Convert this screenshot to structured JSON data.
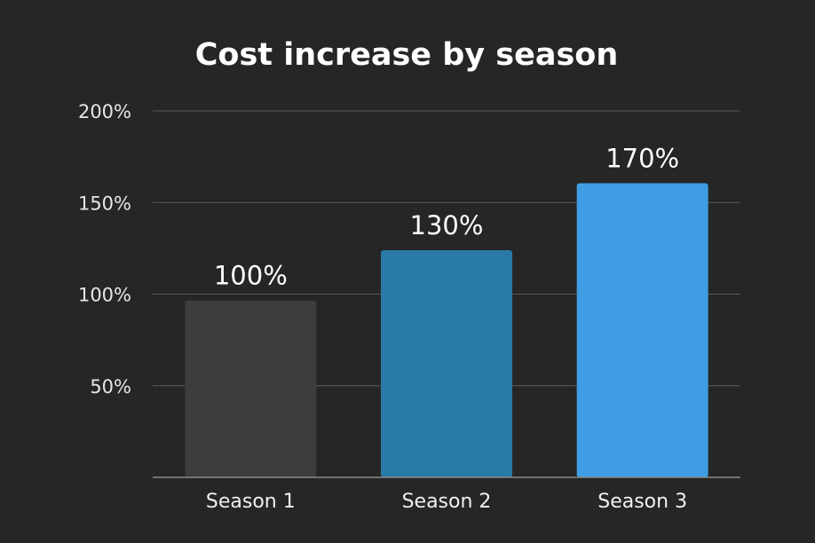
{
  "chart_data": {
    "type": "bar",
    "title": "Cost increase by season",
    "xlabel": "",
    "ylabel": "",
    "categories": [
      "Season 1",
      "Season 2",
      "Season 3"
    ],
    "values": [
      100,
      130,
      170
    ],
    "value_labels": [
      "100%",
      "130%",
      "170%"
    ],
    "bar_colors": [
      "#3d3d3d",
      "#2a7aa8",
      "#3e9de3"
    ],
    "ylim": [
      0,
      200
    ],
    "yticks": [
      50,
      100,
      150,
      200
    ],
    "ytick_labels": [
      "50%",
      "100%",
      "150%",
      "200%"
    ],
    "grid": true,
    "legend": "none"
  }
}
